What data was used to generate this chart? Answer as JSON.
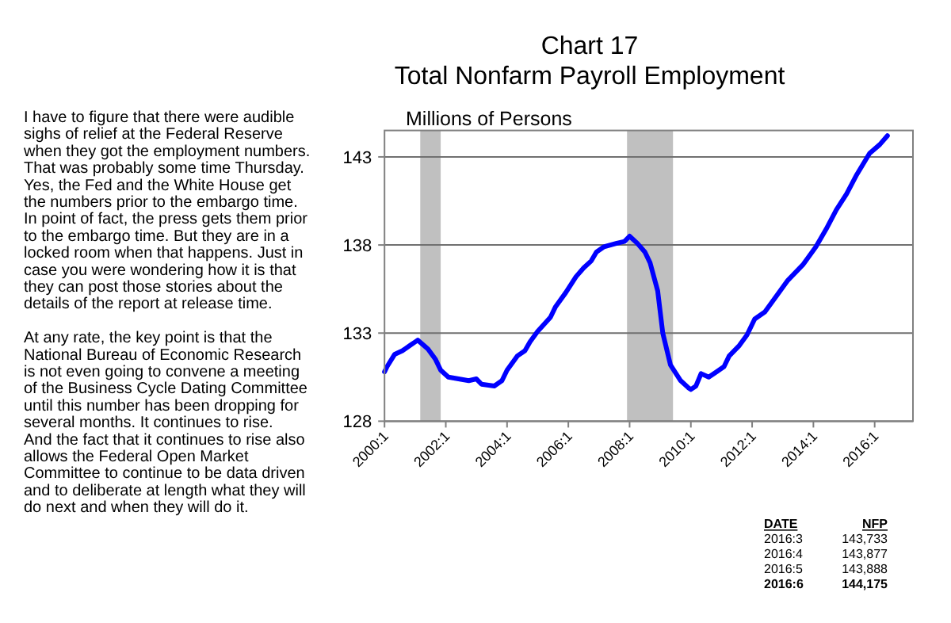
{
  "chart_data": {
    "type": "line",
    "title": "Chart 17",
    "subtitle": "Total Nonfarm Payroll Employment",
    "ylabel": "Millions of Persons",
    "x": [
      "2000-01",
      "2000-02",
      "2000-05",
      "2000-08",
      "2000-11",
      "2001-01",
      "2001-02",
      "2001-06",
      "2001-09",
      "2001-11",
      "2002-02",
      "2002-06",
      "2002-10",
      "2003-01",
      "2003-03",
      "2003-08",
      "2003-11",
      "2004-01",
      "2004-05",
      "2004-08",
      "2004-10",
      "2005-01",
      "2005-06",
      "2005-08",
      "2005-12",
      "2006-04",
      "2006-07",
      "2006-10",
      "2006-12",
      "2007-03",
      "2007-08",
      "2007-11",
      "2008-01",
      "2008-04",
      "2008-07",
      "2008-09",
      "2008-12",
      "2009-02",
      "2009-05",
      "2009-09",
      "2009-12",
      "2010-01",
      "2010-03",
      "2010-05",
      "2010-08",
      "2010-11",
      "2011-02",
      "2011-04",
      "2011-08",
      "2011-11",
      "2012-02",
      "2012-06",
      "2012-10",
      "2013-03",
      "2013-09",
      "2014-02",
      "2014-06",
      "2014-10",
      "2015-02",
      "2015-06",
      "2015-11",
      "2016-03",
      "2016-06"
    ],
    "series": [
      {
        "color": "#0000ff",
        "values": [
          130.8,
          131.1,
          131.8,
          132.0,
          132.3,
          132.5,
          132.6,
          132.1,
          131.5,
          130.9,
          130.5,
          130.4,
          130.3,
          130.4,
          130.1,
          130.0,
          130.3,
          130.9,
          131.7,
          132.0,
          132.5,
          133.1,
          133.9,
          134.5,
          135.3,
          136.2,
          136.7,
          137.1,
          137.6,
          137.9,
          138.1,
          138.2,
          138.5,
          138.1,
          137.6,
          137.0,
          135.4,
          133.0,
          131.2,
          130.3,
          129.9,
          129.8,
          130.0,
          130.7,
          130.5,
          130.8,
          131.1,
          131.7,
          132.3,
          132.9,
          133.8,
          134.2,
          135.0,
          136.0,
          136.9,
          137.9,
          138.9,
          140.0,
          140.9,
          142.0,
          143.2,
          143.7,
          144.2
        ]
      }
    ],
    "xlim": [
      "2000-01",
      "2017-04"
    ],
    "ylim": [
      128,
      144.5
    ],
    "xticks": [
      {
        "value": "2000-01",
        "label": "2000:1"
      },
      {
        "value": "2002-01",
        "label": "2002:1"
      },
      {
        "value": "2004-01",
        "label": "2004:1"
      },
      {
        "value": "2006-01",
        "label": "2006:1"
      },
      {
        "value": "2008-01",
        "label": "2008:1"
      },
      {
        "value": "2010-01",
        "label": "2010:1"
      },
      {
        "value": "2012-01",
        "label": "2012:1"
      },
      {
        "value": "2014-01",
        "label": "2014:1"
      },
      {
        "value": "2016-01",
        "label": "2016:1"
      }
    ],
    "yticks": [
      128,
      133,
      138,
      143
    ],
    "grid": "y",
    "bands": [
      {
        "axis": "x",
        "from": "2001-03",
        "to": "2001-11",
        "color": "#c0c0c0"
      },
      {
        "axis": "x",
        "from": "2007-12",
        "to": "2009-06",
        "color": "#c0c0c0"
      }
    ],
    "annotations": [
      "I have to figure that there were audible sighs of relief at the Federal Reserve when they got the employment numbers. That was probably some time Thursday. Yes, the Fed and the White House get the numbers prior to the embargo time. In point of fact, the press gets them prior to the embargo time.  But they are in a locked room when that happens. Just in case you were wondering how it is that they can post those stories about the details of the report at release time.",
      "At any rate, the key point is that the National Bureau of Economic Research is not even going to convene a meeting of the Business Cycle Dating Committee until this number has been dropping for several months.  It continues to rise.  And the fact that it continues to rise also allows the Federal Open Market Committee to continue to be data driven and to deliberate at length what they will do next and when they will do it.",
      "DATE",
      "NFP",
      "2016:3",
      "143,733",
      "2016:4",
      "143,877",
      "2016:5",
      "143,888",
      "2016:6",
      "144,175"
    ]
  }
}
